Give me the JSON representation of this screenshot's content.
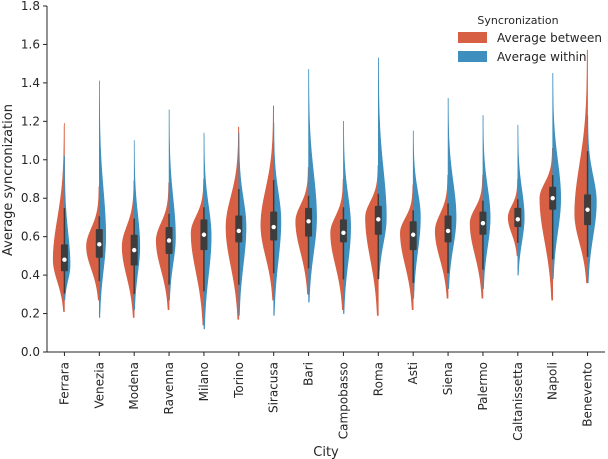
{
  "chart_data": {
    "type": "violin",
    "title": "",
    "xlabel": "City",
    "ylabel": "Average syncronization",
    "ylim": [
      0.0,
      1.8
    ],
    "yticks": [
      "0.0",
      "0.2",
      "0.4",
      "0.6",
      "0.8",
      "1.0",
      "1.2",
      "1.4",
      "1.6",
      "1.8"
    ],
    "grid": false,
    "split": true,
    "legend": {
      "title": "Syncronization",
      "placement": "top-right",
      "entries": [
        {
          "name": "Average between",
          "color": "#d65f44"
        },
        {
          "name": "Average within",
          "color": "#3e8fbd"
        }
      ]
    },
    "categories": [
      "Ferrara",
      "Venezia",
      "Modena",
      "Ravenna",
      "Milano",
      "Torino",
      "Siracusa",
      "Bari",
      "Campobasso",
      "Roma",
      "Asti",
      "Siena",
      "Palermo",
      "Caltanissetta",
      "Napoli",
      "Benevento"
    ],
    "series": [
      {
        "name": "Average between",
        "color": "#d65f44",
        "values": [
          {
            "min": 0.21,
            "q1": 0.42,
            "median": 0.48,
            "q3": 0.56,
            "max": 1.19,
            "peak": 0.48,
            "width": 0.7
          },
          {
            "min": 0.27,
            "q1": 0.49,
            "median": 0.56,
            "q3": 0.64,
            "max": 0.86,
            "peak": 0.55,
            "width": 0.8
          },
          {
            "min": 0.18,
            "q1": 0.45,
            "median": 0.53,
            "q3": 0.61,
            "max": 0.89,
            "peak": 0.55,
            "width": 0.75
          },
          {
            "min": 0.22,
            "q1": 0.51,
            "median": 0.58,
            "q3": 0.65,
            "max": 0.88,
            "peak": 0.58,
            "width": 0.8
          },
          {
            "min": 0.14,
            "q1": 0.53,
            "median": 0.61,
            "q3": 0.69,
            "max": 0.9,
            "peak": 0.62,
            "width": 0.8
          },
          {
            "min": 0.17,
            "q1": 0.57,
            "median": 0.63,
            "q3": 0.71,
            "max": 1.17,
            "peak": 0.65,
            "width": 0.8
          },
          {
            "min": 0.27,
            "q1": 0.58,
            "median": 0.65,
            "q3": 0.73,
            "max": 1.28,
            "peak": 0.66,
            "width": 0.8
          },
          {
            "min": 0.3,
            "q1": 0.6,
            "median": 0.68,
            "q3": 0.75,
            "max": 0.96,
            "peak": 0.68,
            "width": 0.8
          },
          {
            "min": 0.22,
            "q1": 0.57,
            "median": 0.62,
            "q3": 0.69,
            "max": 0.9,
            "peak": 0.62,
            "width": 0.8
          },
          {
            "min": 0.19,
            "q1": 0.61,
            "median": 0.69,
            "q3": 0.76,
            "max": 0.97,
            "peak": 0.7,
            "width": 0.8
          },
          {
            "min": 0.22,
            "q1": 0.53,
            "median": 0.61,
            "q3": 0.68,
            "max": 0.87,
            "peak": 0.62,
            "width": 0.8
          },
          {
            "min": 0.28,
            "q1": 0.57,
            "median": 0.63,
            "q3": 0.71,
            "max": 0.92,
            "peak": 0.63,
            "width": 0.8
          },
          {
            "min": 0.28,
            "q1": 0.61,
            "median": 0.67,
            "q3": 0.73,
            "max": 0.92,
            "peak": 0.67,
            "width": 0.8
          },
          {
            "min": 0.5,
            "q1": 0.65,
            "median": 0.69,
            "q3": 0.75,
            "max": 0.9,
            "peak": 0.7,
            "width": 0.6
          },
          {
            "min": 0.27,
            "q1": 0.74,
            "median": 0.8,
            "q3": 0.86,
            "max": 1.06,
            "peak": 0.8,
            "width": 0.8
          },
          {
            "min": 0.36,
            "q1": 0.66,
            "median": 0.74,
            "q3": 0.82,
            "max": 1.57,
            "peak": 0.72,
            "width": 0.8
          }
        ]
      },
      {
        "name": "Average within",
        "color": "#3e8fbd",
        "values": [
          {
            "min": 0.27,
            "max": 1.02,
            "peak": 0.45,
            "width": 0.35
          },
          {
            "min": 0.18,
            "max": 1.41,
            "peak": 0.6,
            "width": 0.4
          },
          {
            "min": 0.22,
            "max": 1.1,
            "peak": 0.55,
            "width": 0.35
          },
          {
            "min": 0.27,
            "max": 1.26,
            "peak": 0.6,
            "width": 0.4
          },
          {
            "min": 0.12,
            "max": 1.14,
            "peak": 0.6,
            "width": 0.45
          },
          {
            "min": 0.19,
            "max": 1.14,
            "peak": 0.65,
            "width": 0.45
          },
          {
            "min": 0.19,
            "max": 1.19,
            "peak": 0.68,
            "width": 0.45
          },
          {
            "min": 0.26,
            "max": 1.47,
            "peak": 0.7,
            "width": 0.5
          },
          {
            "min": 0.2,
            "max": 1.2,
            "peak": 0.65,
            "width": 0.45
          },
          {
            "min": 0.38,
            "max": 1.53,
            "peak": 0.7,
            "width": 0.5
          },
          {
            "min": 0.28,
            "max": 1.15,
            "peak": 0.7,
            "width": 0.45
          },
          {
            "min": 0.33,
            "max": 1.32,
            "peak": 0.7,
            "width": 0.5
          },
          {
            "min": 0.33,
            "max": 1.23,
            "peak": 0.7,
            "width": 0.45
          },
          {
            "min": 0.4,
            "max": 1.18,
            "peak": 0.7,
            "width": 0.4
          },
          {
            "min": 0.38,
            "max": 1.45,
            "peak": 0.8,
            "width": 0.5
          },
          {
            "min": 0.36,
            "max": 1.23,
            "peak": 0.78,
            "width": 0.55
          }
        ]
      }
    ]
  }
}
